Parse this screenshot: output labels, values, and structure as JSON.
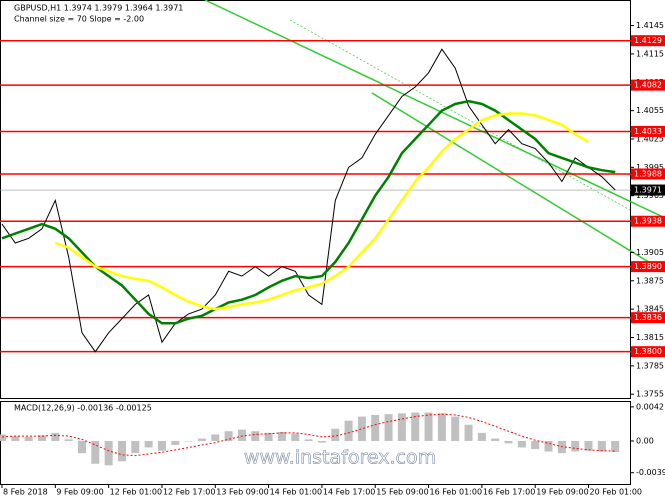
{
  "chart_data": [
    {
      "type": "line",
      "title": "GBPUSD,H1  1.3974 1.3979 1.3964 1.3971",
      "subtitle": "Channel size = 70 Slope = -2.00",
      "watermark": "www.instaforex.com",
      "categories": [
        "8 Feb 2018",
        null,
        null,
        null,
        "9 Feb 09:00",
        null,
        null,
        null,
        "12 Feb 01:00",
        null,
        null,
        null,
        "12 Feb 17:00",
        null,
        null,
        null,
        "13 Feb 09:00",
        null,
        null,
        null,
        "14 Feb 01:00",
        null,
        null,
        null,
        "14 Feb 17:00",
        null,
        null,
        null,
        "15 Feb 09:00",
        null,
        null,
        null,
        "16 Feb 01:00",
        null,
        null,
        null,
        "16 Feb 17:00",
        null,
        null,
        null,
        "19 Feb 09:00",
        null,
        null,
        null,
        "20 Feb 01:00",
        null,
        null
      ],
      "series": [
        {
          "color": "#000000",
          "values": [
            1.3935,
            1.3915,
            1.392,
            1.393,
            1.396,
            1.39,
            1.382,
            1.38,
            1.382,
            1.3835,
            1.385,
            1.386,
            1.381,
            1.383,
            1.384,
            1.3845,
            1.386,
            1.3885,
            1.388,
            1.389,
            1.388,
            1.389,
            1.3885,
            1.386,
            1.385,
            1.396,
            1.3995,
            1.4005,
            1.403,
            1.405,
            1.407,
            1.408,
            1.4095,
            1.412,
            1.41,
            1.406,
            1.404,
            1.402,
            1.4035,
            1.402,
            1.4015,
            1.4,
            1.398,
            1.4005,
            1.3995,
            1.3985,
            1.3971
          ]
        },
        {
          "color": "#008000",
          "values": [
            1.392,
            1.3925,
            1.393,
            1.3935,
            1.393,
            1.392,
            1.3905,
            1.389,
            1.388,
            1.387,
            1.3855,
            1.384,
            1.383,
            1.383,
            1.3835,
            1.3838,
            1.3845,
            1.3852,
            1.3855,
            1.386,
            1.3868,
            1.3875,
            1.388,
            1.3878,
            1.388,
            1.3895,
            1.3915,
            1.394,
            1.3965,
            1.3985,
            1.401,
            1.4025,
            1.404,
            1.4055,
            1.4062,
            1.4065,
            1.4062,
            1.4055,
            1.4045,
            1.4035,
            1.4025,
            1.401,
            1.4005,
            1.4,
            1.3995,
            1.3992,
            1.399
          ]
        },
        {
          "color": "#ffff00",
          "values": [
            null,
            null,
            null,
            null,
            1.3915,
            1.391,
            1.39,
            1.389,
            1.3885,
            1.388,
            1.3877,
            1.3875,
            1.3868,
            1.386,
            1.3853,
            1.3848,
            1.3845,
            1.3847,
            1.385,
            1.3852,
            1.3855,
            1.386,
            1.3865,
            1.3868,
            1.3872,
            1.388,
            1.389,
            1.3905,
            1.392,
            1.394,
            1.396,
            1.398,
            1.3995,
            1.4012,
            1.4025,
            1.4035,
            1.4045,
            1.405,
            1.4052,
            1.4052,
            1.405,
            1.4045,
            1.404,
            1.403,
            1.4022,
            null,
            null
          ]
        }
      ],
      "levels": [
        1.4129,
        1.4082,
        1.4033,
        1.3988,
        1.3938,
        {
          "value": 1.389,
          "label": "1.3890"
        },
        1.3836,
        {
          "value": 1.38,
          "label": "1.3800"
        }
      ],
      "level_color": "#ff0000",
      "last_price": 1.3971,
      "ylim": [
        1.3751,
        1.4171
      ],
      "yticks": [
        1.4145,
        1.4115,
        1.4085,
        1.4055,
        1.4025,
        1.3995,
        1.3965,
        1.3935,
        1.3905,
        1.3875,
        1.3845,
        1.3815,
        1.3785,
        1.3755
      ]
    },
    {
      "type": "bar",
      "title": "MACD(12,26,9) -0.00136 -0.00125",
      "color": "#c0c0c0",
      "values": [
        0.0008,
        0.0006,
        0.0005,
        0.0007,
        0.001,
        0.0002,
        -0.0015,
        -0.0028,
        -0.003,
        -0.0025,
        -0.0015,
        -0.0008,
        -0.0012,
        -0.0005,
        0,
        0.0003,
        0.0008,
        0.0012,
        0.0014,
        0.0012,
        0.001,
        0.0011,
        0.0009,
        0.0002,
        -0.0002,
        0.0015,
        0.0025,
        0.003,
        0.0032,
        0.0033,
        0.0034,
        0.0035,
        0.0035,
        0.0034,
        0.003,
        0.002,
        0.001,
        0.0003,
        -0.0003,
        -0.0008,
        -0.001,
        -0.0013,
        -0.0015,
        -0.0013,
        -0.0012,
        -0.0013,
        -0.00136
      ],
      "signal": {
        "color": "#ff0000",
        "values": [
          0.0005,
          0.0006,
          0.0006,
          0.0006,
          0.0007,
          0.0006,
          0.0002,
          -0.0005,
          -0.0012,
          -0.0017,
          -0.0018,
          -0.0016,
          -0.0014,
          -0.0011,
          -0.0008,
          -0.0005,
          -0.0002,
          0.0002,
          0.0006,
          0.0008,
          0.0009,
          0.001,
          0.001,
          0.0008,
          0.0005,
          0.0006,
          0.001,
          0.0015,
          0.002,
          0.0024,
          0.0027,
          0.003,
          0.0032,
          0.0033,
          0.0032,
          0.0029,
          0.0024,
          0.0018,
          0.0012,
          0.0006,
          0.0001,
          -0.0003,
          -0.0007,
          -0.0009,
          -0.0011,
          -0.0012,
          -0.00125
        ]
      },
      "ylim": [
        -0.0053,
        0.0048
      ],
      "yticks": [
        0.0042,
        {
          "value": 0,
          "label": "0.00"
        },
        -0.00391
      ]
    }
  ]
}
